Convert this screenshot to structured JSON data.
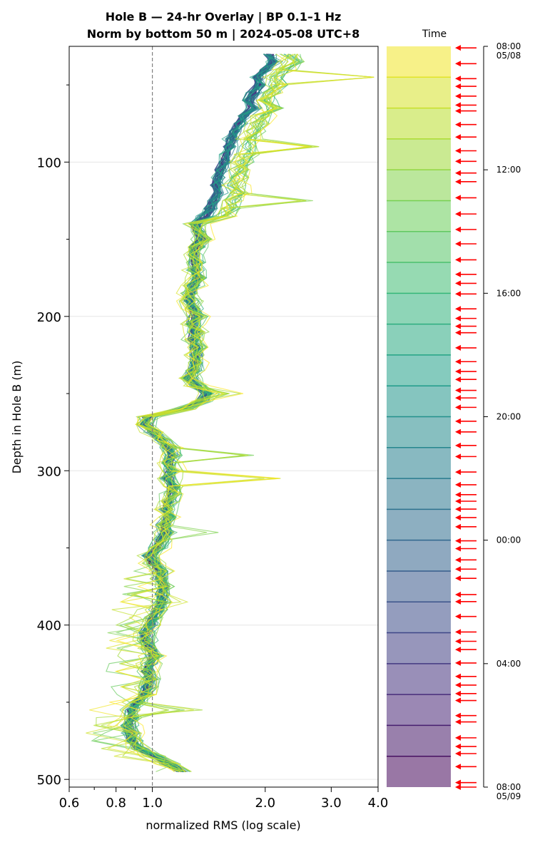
{
  "title_line1": "Hole B — 24-hr Overlay  |  BP 0.1–1 Hz",
  "title_line2": "Norm by bottom 50 m  |  2024-05-08 UTC+8",
  "chart_data": {
    "type": "line",
    "xlabel": "normalized RMS  (log scale)",
    "ylabel": "Depth in Hole B (m)",
    "x_scale": "log",
    "xlim": [
      0.6,
      4.0
    ],
    "ylim": [
      505,
      25
    ],
    "x_tick_labels": [
      "0.6",
      "0.8",
      "1.0",
      "2.0",
      "3.0",
      "4.0"
    ],
    "x_ticks": [
      0.6,
      0.8,
      1.0,
      2.0,
      3.0,
      4.0
    ],
    "y_ticks": [
      100,
      200,
      300,
      400,
      500
    ],
    "y_tick_labels": [
      "100",
      "200",
      "300",
      "400",
      "500"
    ],
    "grid": true,
    "reference_line": {
      "x": 1.0,
      "style": "dashed",
      "color": "#808080"
    },
    "colormap": "viridis",
    "depth": [
      30,
      35,
      40,
      45,
      50,
      55,
      60,
      65,
      70,
      75,
      80,
      85,
      90,
      95,
      100,
      105,
      110,
      115,
      120,
      125,
      130,
      135,
      140,
      145,
      150,
      155,
      160,
      165,
      170,
      175,
      180,
      185,
      190,
      195,
      200,
      205,
      210,
      215,
      220,
      225,
      230,
      235,
      240,
      245,
      250,
      255,
      260,
      265,
      270,
      275,
      280,
      285,
      290,
      295,
      300,
      305,
      310,
      315,
      320,
      325,
      330,
      335,
      340,
      345,
      350,
      355,
      360,
      365,
      370,
      375,
      380,
      385,
      390,
      395,
      400,
      405,
      410,
      415,
      420,
      425,
      430,
      435,
      440,
      445,
      450,
      455,
      460,
      465,
      470,
      475,
      480,
      485,
      490,
      495
    ],
    "median_profile": [
      2.05,
      2.1,
      2.0,
      1.9,
      1.92,
      1.85,
      1.8,
      1.85,
      1.75,
      1.7,
      1.65,
      1.62,
      1.6,
      1.58,
      1.55,
      1.52,
      1.5,
      1.48,
      1.5,
      1.45,
      1.42,
      1.38,
      1.3,
      1.32,
      1.35,
      1.3,
      1.28,
      1.3,
      1.3,
      1.32,
      1.28,
      1.25,
      1.25,
      1.28,
      1.3,
      1.27,
      1.3,
      1.28,
      1.3,
      1.3,
      1.3,
      1.28,
      1.25,
      1.3,
      1.4,
      1.35,
      1.2,
      0.97,
      0.95,
      1.0,
      1.05,
      1.1,
      1.12,
      1.1,
      1.12,
      1.1,
      1.13,
      1.12,
      1.1,
      1.08,
      1.1,
      1.07,
      1.08,
      1.05,
      1.02,
      0.98,
      1.0,
      1.05,
      1.05,
      1.07,
      1.05,
      1.06,
      1.03,
      1.0,
      0.98,
      0.95,
      0.96,
      0.98,
      1.0,
      0.98,
      0.96,
      0.98,
      0.97,
      0.95,
      0.9,
      0.88,
      0.87,
      0.86,
      0.87,
      0.88,
      0.92,
      1.0,
      1.1,
      1.2
    ],
    "traces": 56,
    "colorbar": {
      "title": "Time",
      "tick_labels": [
        {
          "t": 0,
          "label": "08:00",
          "sub": "05/08"
        },
        {
          "t": 4,
          "label": "12:00",
          "sub": ""
        },
        {
          "t": 8,
          "label": "16:00",
          "sub": ""
        },
        {
          "t": 12,
          "label": "20:00",
          "sub": ""
        },
        {
          "t": 16,
          "label": "00:00",
          "sub": ""
        },
        {
          "t": 20,
          "label": "04:00",
          "sub": ""
        },
        {
          "t": 24,
          "label": "08:00",
          "sub": "05/09"
        }
      ],
      "bands": 24,
      "arrow_color": "#ff0000"
    }
  }
}
